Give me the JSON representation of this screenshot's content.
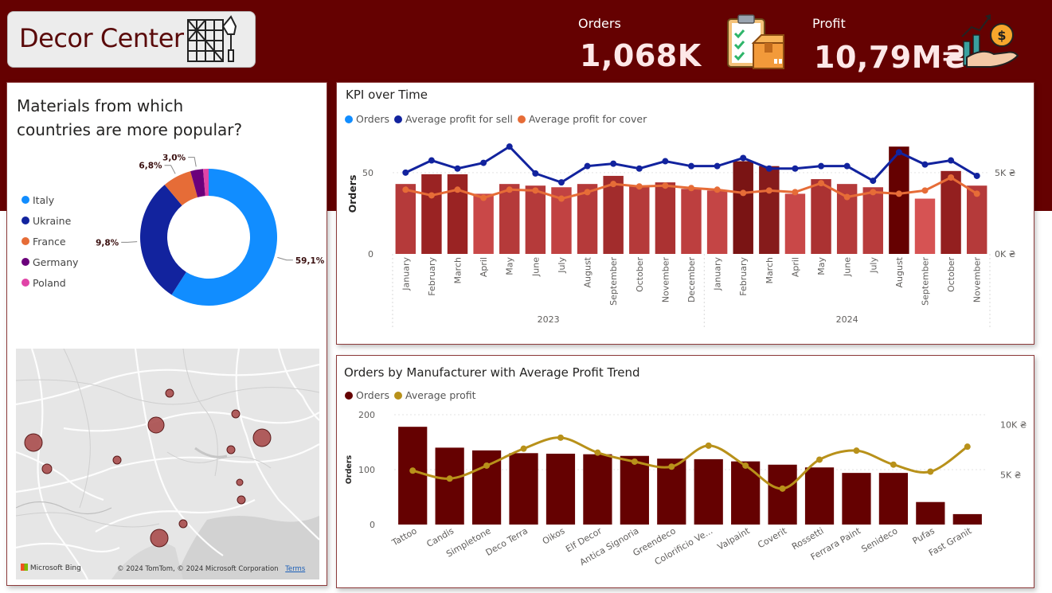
{
  "header": {
    "app_title": "Decor Center",
    "orders_label": "Orders",
    "orders_value": "1,068K",
    "profit_label": "Profit",
    "profit_value": "10,79M₴"
  },
  "colors": {
    "background_band": "#650101",
    "accent_blue": "#118dff",
    "dark_blue": "#12239e",
    "orange": "#e66c37",
    "purple": "#6b007b",
    "pink": "#e044a7",
    "dark_red": "#650101",
    "gold": "#b8911a"
  },
  "donut_panel": {
    "title_line1": "Materials from which",
    "title_line2": "countries are more popular?"
  },
  "map_panel": {
    "provider": "Microsoft Bing",
    "copyright": "© 2024 TomTom, © 2024 Microsoft Corporation",
    "terms": "Terms"
  },
  "chart_data": [
    {
      "type": "pie",
      "variant": "donut",
      "title": "Materials from which countries are more popular?",
      "legend_position": "left",
      "slices": [
        {
          "label": "Italy",
          "value": 59.1,
          "data_label": "59,1%",
          "color": "#118dff"
        },
        {
          "label": "Ukraine",
          "value": 29.8,
          "data_label": "29,8%",
          "color": "#12239e"
        },
        {
          "label": "France",
          "value": 6.8,
          "data_label": "6,8%",
          "color": "#e66c37"
        },
        {
          "label": "Germany",
          "value": 3.0,
          "data_label": "3,0%",
          "color": "#6b007b"
        },
        {
          "label": "Poland",
          "value": 1.3,
          "data_label": "",
          "color": "#e044a7"
        }
      ]
    },
    {
      "type": "bar",
      "title": "KPI over Time",
      "legend_position": "top-left",
      "legend": [
        "Orders",
        "Average profit for sell",
        "Average profit for cover"
      ],
      "legend_colors": [
        "#118dff",
        "#12239e",
        "#e66c37"
      ],
      "ylabel": "Orders",
      "y_ticks": [
        "0",
        "50"
      ],
      "y2_ticks": [
        "0K ₴",
        "5K ₴"
      ],
      "ylim": [
        0,
        70
      ],
      "y2lim": [
        0,
        7000
      ],
      "years": [
        {
          "label": "2023",
          "count": 12
        },
        {
          "label": "2024",
          "count": 11
        }
      ],
      "categories": [
        "January",
        "February",
        "March",
        "April",
        "May",
        "June",
        "July",
        "August",
        "September",
        "October",
        "November",
        "December",
        "January",
        "February",
        "March",
        "April",
        "May",
        "June",
        "July",
        "August",
        "September",
        "October",
        "November"
      ],
      "series": [
        {
          "name": "Orders",
          "kind": "bar",
          "values": [
            43,
            49,
            49,
            37,
            43,
            42,
            41,
            43,
            48,
            42,
            44,
            40,
            39,
            57,
            54,
            37,
            46,
            43,
            41,
            66,
            34,
            51,
            42
          ]
        },
        {
          "name": "Average profit for sell",
          "kind": "line",
          "color": "#12239e",
          "values": [
            5000,
            5750,
            5250,
            5600,
            6600,
            4950,
            4400,
            5400,
            5550,
            5250,
            5700,
            5400,
            5400,
            5900,
            5250,
            5250,
            5400,
            5400,
            4500,
            6250,
            5500,
            5750,
            4800
          ]
        },
        {
          "name": "Average profit for cover",
          "kind": "line",
          "color": "#e66c37",
          "values": [
            3950,
            3600,
            3950,
            3450,
            3950,
            3900,
            3400,
            3800,
            4300,
            4150,
            4200,
            4050,
            3950,
            3750,
            3900,
            3800,
            4350,
            3500,
            3800,
            3700,
            3900,
            4700,
            3700
          ]
        }
      ],
      "bar_colors": [
        "#b53a3a",
        "#9a2323",
        "#9a2323",
        "#c94848",
        "#b53a3a",
        "#b53a3a",
        "#c14242",
        "#b53a3a",
        "#a22c2c",
        "#b53a3a",
        "#ab3232",
        "#bd3f3f",
        "#c44545",
        "#7a1414",
        "#861b1b",
        "#c94848",
        "#ab3232",
        "#b53a3a",
        "#b83c3c",
        "#650101",
        "#d65353",
        "#931f1f",
        "#b53a3a"
      ]
    },
    {
      "type": "bar",
      "title": "Orders by Manufacturer with Average Profit Trend",
      "legend_position": "top-left",
      "legend": [
        "Orders",
        "Average profit"
      ],
      "legend_colors": [
        "#650101",
        "#b8911a"
      ],
      "ylabel": "Orders",
      "y_ticks": [
        "0",
        "100",
        "200"
      ],
      "y2_ticks": [
        "5K ₴",
        "10K ₴"
      ],
      "ylim": [
        0,
        200
      ],
      "y2lim": [
        0,
        11000
      ],
      "categories": [
        "Tattoo",
        "Candis",
        "Simpletone",
        "Deco Terra",
        "Oikos",
        "Elf Decor",
        "Antica Signoria",
        "Greendeco",
        "Colorificio Ve...",
        "Valpaint",
        "Coverit",
        "Rossetti",
        "Ferrara Paint",
        "Senideco",
        "Pufas",
        "Fast Granit"
      ],
      "series": [
        {
          "name": "Orders",
          "kind": "bar",
          "values": [
            178,
            140,
            135,
            130,
            129,
            128,
            125,
            120,
            119,
            115,
            109,
            104,
            94,
            94,
            41,
            19
          ]
        },
        {
          "name": "Average profit",
          "kind": "line",
          "smooth": true,
          "values": [
            5400,
            4600,
            5900,
            7600,
            8700,
            7200,
            6300,
            5800,
            7900,
            5900,
            3600,
            6500,
            7400,
            6000,
            5300,
            7800
          ]
        }
      ]
    }
  ]
}
